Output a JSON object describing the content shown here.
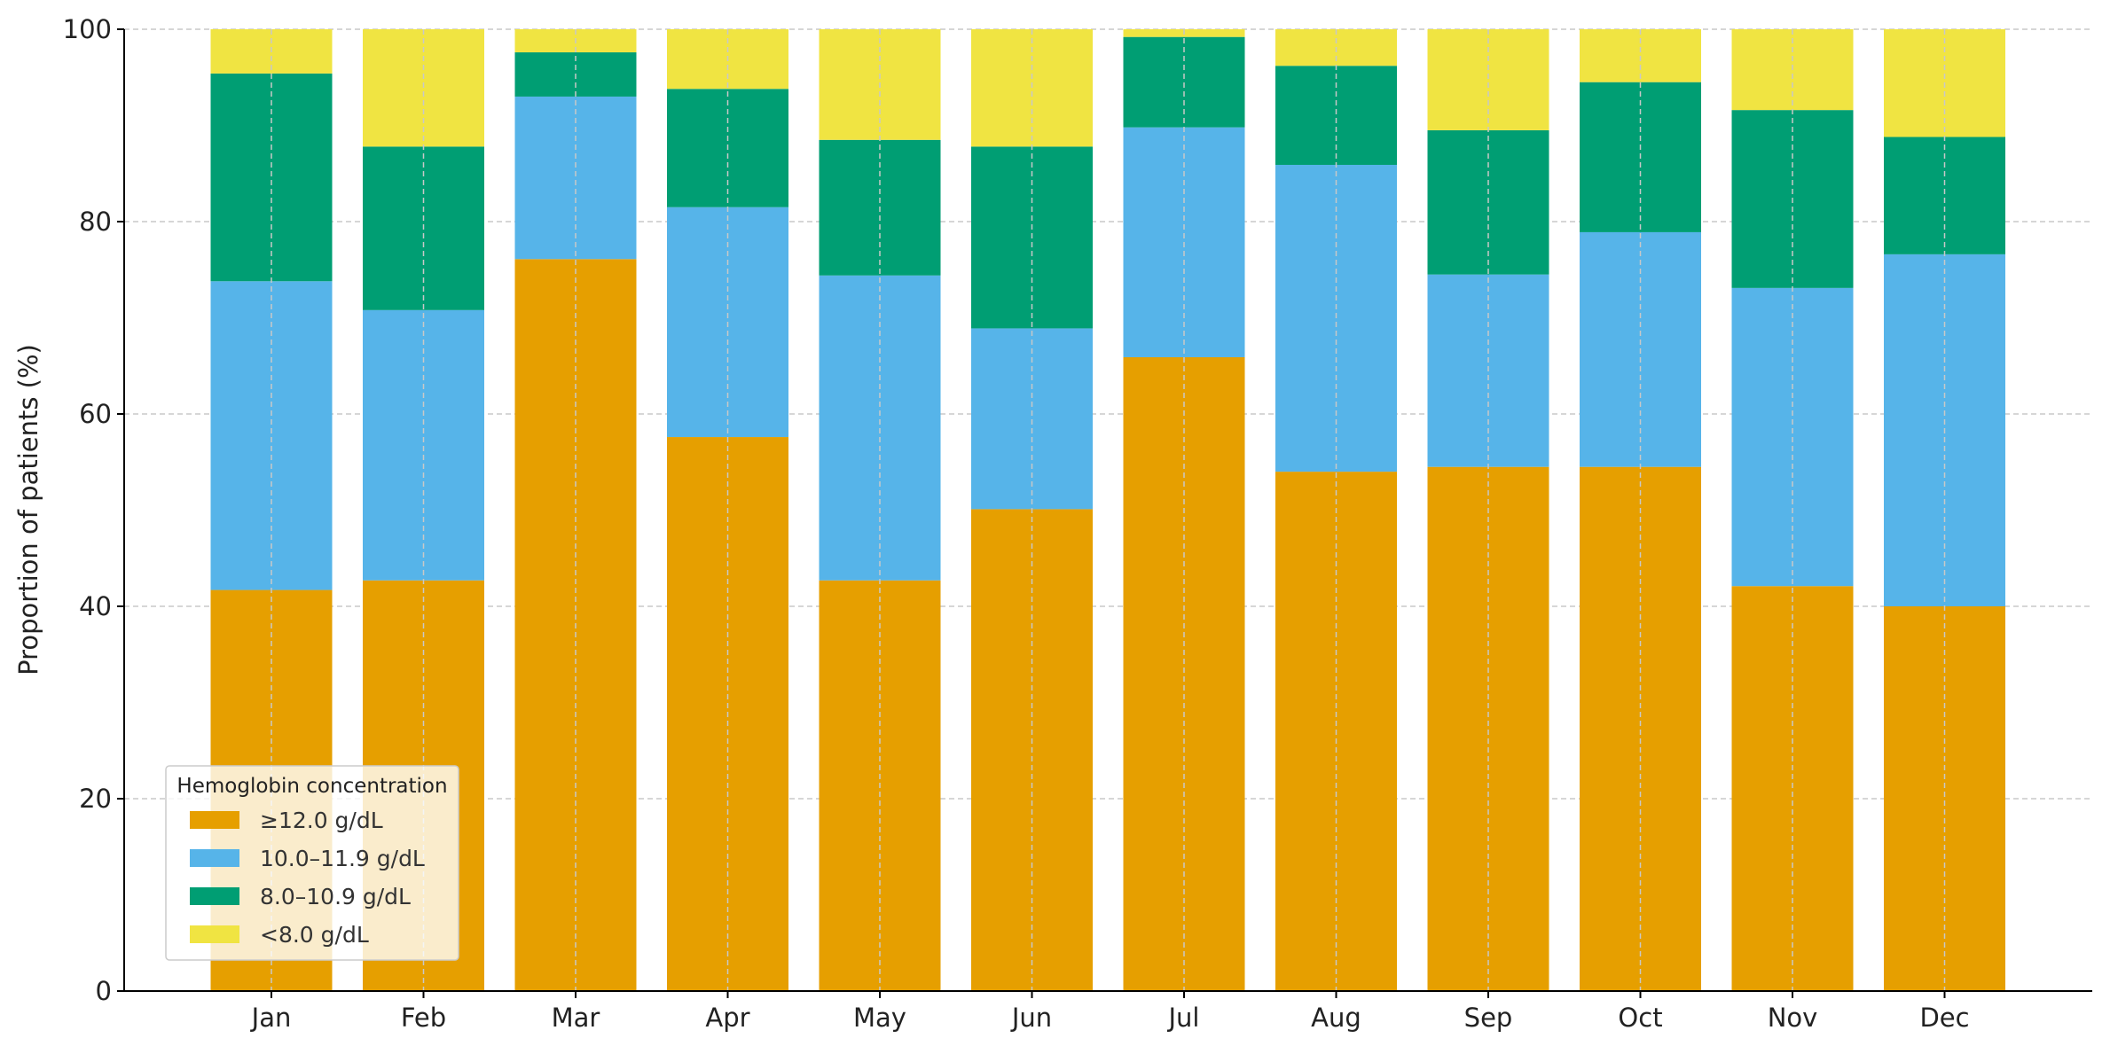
{
  "chart_data": {
    "type": "bar",
    "stacked": true,
    "title": "",
    "xlabel": "",
    "ylabel": "Proportion of patients (%)",
    "ylim": [
      0,
      100
    ],
    "yticks": [
      0,
      20,
      40,
      60,
      80,
      100
    ],
    "grid": true,
    "categories": [
      "Jan",
      "Feb",
      "Mar",
      "Apr",
      "May",
      "Jun",
      "Jul",
      "Aug",
      "Sep",
      "Oct",
      "Nov",
      "Dec"
    ],
    "legend": {
      "title": "Hemoglobin concentration",
      "placement": "lower-left"
    },
    "series": [
      {
        "name": "≥12.0 g/dL",
        "color": "#E69F00",
        "values": [
          41.7,
          42.7,
          76.1,
          57.6,
          42.7,
          50.1,
          65.9,
          54.0,
          54.5,
          54.5,
          42.1,
          40.0
        ]
      },
      {
        "name": "10.0–11.9 g/dL",
        "color": "#56B4E9",
        "values": [
          32.1,
          28.1,
          16.9,
          23.9,
          31.7,
          18.8,
          23.9,
          31.9,
          20.0,
          24.4,
          31.0,
          36.6
        ]
      },
      {
        "name": "8.0–10.9 g/dL",
        "color": "#009E73",
        "values": [
          21.6,
          17.0,
          4.6,
          12.3,
          14.1,
          18.9,
          9.4,
          10.3,
          15.0,
          15.6,
          18.5,
          12.2
        ]
      },
      {
        "name": "<8.0 g/dL",
        "color": "#F0E442",
        "values": [
          4.6,
          12.2,
          2.4,
          6.2,
          11.5,
          12.2,
          0.8,
          3.8,
          10.5,
          5.5,
          8.4,
          11.2
        ]
      }
    ]
  }
}
